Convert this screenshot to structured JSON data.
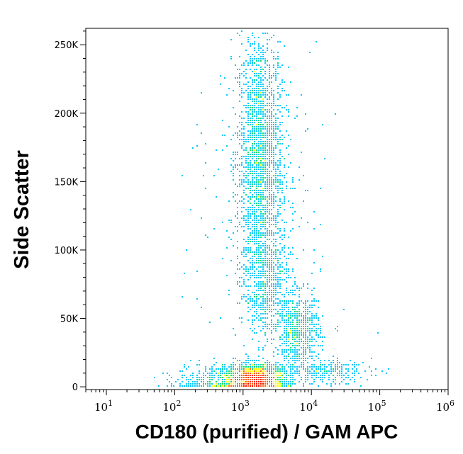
{
  "chart_data": {
    "type": "scatter",
    "title": "",
    "xlabel": "CD180 (purified) / GAM APC",
    "ylabel": "Side Scatter",
    "x_scale": "log",
    "xlim": [
      5,
      1000000
    ],
    "ylim": [
      -2000,
      262000
    ],
    "x_ticks": [
      {
        "base": "10",
        "exp": "1",
        "value": 10
      },
      {
        "base": "10",
        "exp": "2",
        "value": 100
      },
      {
        "base": "10",
        "exp": "3",
        "value": 1000
      },
      {
        "base": "10",
        "exp": "4",
        "value": 10000
      },
      {
        "base": "10",
        "exp": "5",
        "value": 100000
      },
      {
        "base": "10",
        "exp": "6",
        "value": 1000000
      }
    ],
    "y_ticks": [
      {
        "label": "0",
        "value": 0
      },
      {
        "label": "50K",
        "value": 50000
      },
      {
        "label": "100K",
        "value": 100000
      },
      {
        "label": "150K",
        "value": 150000
      },
      {
        "label": "200K",
        "value": 200000
      },
      {
        "label": "250K",
        "value": 250000
      }
    ],
    "grid": false,
    "legend": "none",
    "color_scale": [
      "#0000d8",
      "#00c8ff",
      "#00e070",
      "#ffff00",
      "#ff6000",
      "#ff0000"
    ],
    "populations": [
      {
        "x_center": 1800,
        "x_spread_decades": 0.17,
        "y_center": 165000,
        "y_spread": 48000,
        "count": 2300
      },
      {
        "x_center": 1500,
        "x_spread_decades": 0.22,
        "y_center": 5500,
        "y_spread": 5000,
        "count": 2400
      },
      {
        "x_center": 6500,
        "x_spread_decades": 0.16,
        "y_center": 40000,
        "y_spread": 13000,
        "count": 700
      },
      {
        "x_center": 2300,
        "x_spread_decades": 0.16,
        "y_center": 75000,
        "y_spread": 20000,
        "count": 550
      },
      {
        "x_center": 15000,
        "x_spread_decades": 0.35,
        "y_center": 11000,
        "y_spread": 4500,
        "count": 260
      },
      {
        "x_center": 400,
        "x_spread_decades": 0.3,
        "y_center": 5000,
        "y_spread": 6000,
        "count": 300
      },
      {
        "x_center": 2000,
        "x_spread_decades": 0.55,
        "y_center": 120000,
        "y_spread": 60000,
        "count": 200
      }
    ]
  }
}
